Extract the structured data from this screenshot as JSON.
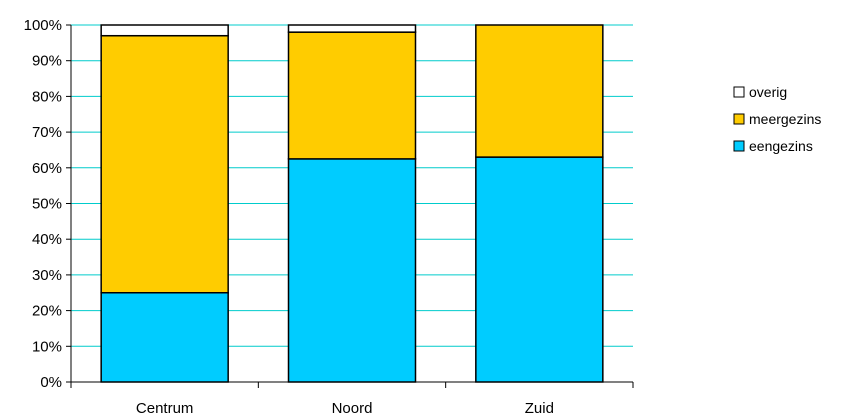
{
  "chart_data": {
    "type": "bar",
    "stacked": true,
    "categories": [
      "Centrum",
      "Noord",
      "Zuid"
    ],
    "series": [
      {
        "name": "eengezins",
        "color": "#00CCFF",
        "values": [
          25,
          62.5,
          63
        ]
      },
      {
        "name": "meergezins",
        "color": "#FFCC00",
        "values": [
          72,
          35.5,
          37
        ]
      },
      {
        "name": "overig",
        "color": "#FFFFFF",
        "values": [
          3,
          2,
          0
        ]
      }
    ],
    "ylim": [
      0,
      100
    ],
    "yticks": [
      "0%",
      "10%",
      "20%",
      "30%",
      "40%",
      "50%",
      "60%",
      "70%",
      "80%",
      "90%",
      "100%"
    ],
    "grid": true,
    "grid_color": "#00CCCC",
    "legend_position": "right",
    "legend_order": [
      "overig",
      "meergezins",
      "eengezins"
    ]
  }
}
